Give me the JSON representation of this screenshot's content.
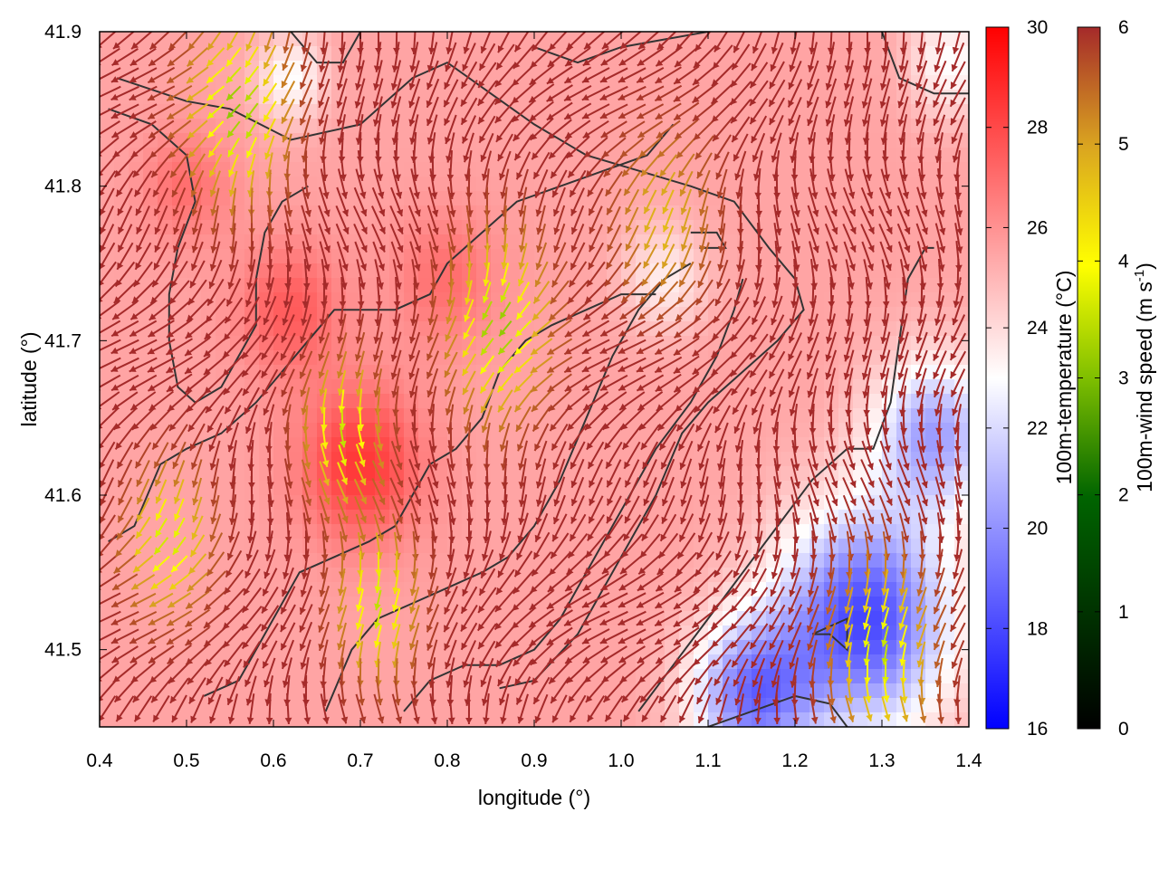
{
  "chart_data": {
    "type": "heatmap",
    "title": "",
    "xlabel": "longitude (°)",
    "ylabel": "latitude (°)",
    "xlim": [
      0.4,
      1.4
    ],
    "ylim": [
      41.45,
      41.9
    ],
    "x_ticks": [
      "0.4",
      "0.5",
      "0.6",
      "0.7",
      "0.8",
      "0.9",
      "1.0",
      "1.1",
      "1.2",
      "1.3",
      "1.4"
    ],
    "y_ticks": [
      "41.5",
      "41.6",
      "41.7",
      "41.8",
      "41.9"
    ],
    "grid": false,
    "temperature_colorbar": {
      "label": "100m-temperature (°C)",
      "range": [
        16,
        30
      ],
      "ticks": [
        "16",
        "18",
        "20",
        "22",
        "24",
        "26",
        "28",
        "30"
      ],
      "colors": [
        "#0000ff",
        "#ffffff",
        "#ff0000"
      ]
    },
    "wind_colorbar": {
      "label": "100m-wind speed (m s",
      "label_sup": "-1",
      "label_end": ")",
      "range": [
        0,
        6
      ],
      "ticks": [
        "0",
        "1",
        "2",
        "3",
        "4",
        "5",
        "6"
      ],
      "colors": [
        "#000000",
        "#006400",
        "#7fbf00",
        "#ffff00",
        "#daa520",
        "#a52a2a"
      ]
    },
    "temperature_field": {
      "background": 25.5,
      "features": [
        {
          "lon": 0.7,
          "lat": 41.62,
          "value": 28.5,
          "spread": 0.07
        },
        {
          "lon": 0.62,
          "lat": 41.72,
          "value": 27.5,
          "spread": 0.06
        },
        {
          "lon": 0.5,
          "lat": 41.8,
          "value": 27.0,
          "spread": 0.05
        },
        {
          "lon": 0.8,
          "lat": 41.74,
          "value": 27.0,
          "spread": 0.06
        },
        {
          "lon": 0.62,
          "lat": 41.87,
          "value": 23.0,
          "spread": 0.04
        },
        {
          "lon": 1.05,
          "lat": 41.74,
          "value": 23.5,
          "spread": 0.05
        },
        {
          "lon": 1.28,
          "lat": 41.52,
          "value": 18.0,
          "spread": 0.1
        },
        {
          "lon": 1.36,
          "lat": 41.64,
          "value": 20.5,
          "spread": 0.07
        },
        {
          "lon": 1.15,
          "lat": 41.47,
          "value": 19.5,
          "spread": 0.07
        },
        {
          "lon": 1.38,
          "lat": 41.88,
          "value": 23.0,
          "spread": 0.05
        }
      ]
    },
    "wind_field": {
      "background_speed": 6,
      "background_direction_deg": 250,
      "calm_zones": [
        {
          "lon": 0.68,
          "lat": 41.64,
          "speed": 3.0,
          "spread": 0.04
        },
        {
          "lon": 0.56,
          "lat": 41.85,
          "speed": 2.5,
          "spread": 0.05
        },
        {
          "lon": 0.86,
          "lat": 41.71,
          "speed": 2.5,
          "spread": 0.05
        },
        {
          "lon": 0.48,
          "lat": 41.57,
          "speed": 3.0,
          "spread": 0.04
        },
        {
          "lon": 1.3,
          "lat": 41.5,
          "speed": 3.0,
          "spread": 0.05
        },
        {
          "lon": 0.72,
          "lat": 41.53,
          "speed": 3.0,
          "spread": 0.04
        },
        {
          "lon": 1.05,
          "lat": 41.78,
          "speed": 4.5,
          "spread": 0.05
        }
      ]
    },
    "terrain_contours": [
      [
        [
          0.42,
          41.87
        ],
        [
          0.5,
          41.855
        ],
        [
          0.55,
          41.85
        ],
        [
          0.62,
          41.83
        ],
        [
          0.7,
          41.84
        ],
        [
          0.76,
          41.87
        ],
        [
          0.8,
          41.88
        ],
        [
          0.85,
          41.86
        ],
        [
          0.9,
          41.84
        ],
        [
          0.96,
          41.82
        ],
        [
          1.02,
          41.81
        ],
        [
          1.08,
          41.8
        ],
        [
          1.13,
          41.79
        ],
        [
          1.17,
          41.76
        ],
        [
          1.2,
          41.74
        ],
        [
          1.21,
          41.72
        ],
        [
          1.18,
          41.7
        ],
        [
          1.14,
          41.68
        ],
        [
          1.1,
          41.66
        ],
        [
          1.07,
          41.64
        ],
        [
          1.04,
          41.6
        ],
        [
          1.01,
          41.57
        ],
        [
          0.98,
          41.54
        ],
        [
          0.95,
          41.51
        ],
        [
          0.9,
          41.48
        ],
        [
          0.86,
          41.475
        ]
      ],
      [
        [
          0.41,
          41.85
        ],
        [
          0.46,
          41.84
        ],
        [
          0.5,
          41.82
        ],
        [
          0.51,
          41.79
        ],
        [
          0.49,
          41.76
        ],
        [
          0.48,
          41.73
        ],
        [
          0.48,
          41.7
        ],
        [
          0.49,
          41.67
        ],
        [
          0.51,
          41.66
        ],
        [
          0.54,
          41.67
        ],
        [
          0.56,
          41.69
        ],
        [
          0.58,
          41.71
        ],
        [
          0.58,
          41.74
        ],
        [
          0.59,
          41.77
        ],
        [
          0.61,
          41.79
        ],
        [
          0.64,
          41.8
        ]
      ],
      [
        [
          0.41,
          41.57
        ],
        [
          0.44,
          41.58
        ],
        [
          0.47,
          41.62
        ],
        [
          0.5,
          41.63
        ],
        [
          0.54,
          41.64
        ],
        [
          0.58,
          41.66
        ],
        [
          0.61,
          41.68
        ],
        [
          0.64,
          41.7
        ],
        [
          0.67,
          41.72
        ],
        [
          0.7,
          41.72
        ],
        [
          0.74,
          41.72
        ],
        [
          0.78,
          41.73
        ],
        [
          0.8,
          41.75
        ],
        [
          0.84,
          41.77
        ],
        [
          0.88,
          41.79
        ],
        [
          0.93,
          41.8
        ],
        [
          0.98,
          41.81
        ],
        [
          1.03,
          41.82
        ],
        [
          1.06,
          41.84
        ]
      ],
      [
        [
          0.52,
          41.47
        ],
        [
          0.56,
          41.48
        ],
        [
          0.58,
          41.5
        ],
        [
          0.6,
          41.52
        ],
        [
          0.63,
          41.55
        ],
        [
          0.67,
          41.56
        ],
        [
          0.71,
          41.57
        ],
        [
          0.74,
          41.58
        ],
        [
          0.76,
          41.6
        ],
        [
          0.78,
          41.62
        ],
        [
          0.81,
          41.63
        ],
        [
          0.84,
          41.65
        ],
        [
          0.86,
          41.68
        ],
        [
          0.89,
          41.7
        ],
        [
          0.92,
          41.71
        ],
        [
          0.96,
          41.72
        ],
        [
          1.0,
          41.73
        ],
        [
          1.04,
          41.73
        ]
      ],
      [
        [
          0.66,
          41.46
        ],
        [
          0.69,
          41.5
        ],
        [
          0.72,
          41.52
        ],
        [
          0.76,
          41.53
        ],
        [
          0.8,
          41.54
        ],
        [
          0.84,
          41.55
        ],
        [
          0.87,
          41.56
        ],
        [
          0.9,
          41.58
        ],
        [
          0.93,
          41.61
        ],
        [
          0.96,
          41.65
        ],
        [
          0.99,
          41.69
        ],
        [
          1.02,
          41.72
        ],
        [
          1.05,
          41.74
        ],
        [
          1.08,
          41.75
        ]
      ],
      [
        [
          0.75,
          41.46
        ],
        [
          0.78,
          41.48
        ],
        [
          0.82,
          41.49
        ],
        [
          0.86,
          41.49
        ],
        [
          0.9,
          41.5
        ],
        [
          0.93,
          41.52
        ],
        [
          0.96,
          41.55
        ],
        [
          1.0,
          41.59
        ],
        [
          1.04,
          41.63
        ],
        [
          1.08,
          41.66
        ],
        [
          1.11,
          41.69
        ],
        [
          1.13,
          41.72
        ],
        [
          1.14,
          41.74
        ]
      ],
      [
        [
          1.02,
          41.46
        ],
        [
          1.06,
          41.49
        ],
        [
          1.1,
          41.52
        ],
        [
          1.14,
          41.55
        ],
        [
          1.18,
          41.58
        ],
        [
          1.22,
          41.61
        ],
        [
          1.26,
          41.63
        ],
        [
          1.29,
          41.63
        ],
        [
          1.31,
          41.66
        ],
        [
          1.32,
          41.7
        ],
        [
          1.33,
          41.74
        ],
        [
          1.35,
          41.76
        ],
        [
          1.36,
          41.76
        ]
      ],
      [
        [
          1.1,
          41.45
        ],
        [
          1.15,
          41.46
        ],
        [
          1.2,
          41.47
        ],
        [
          1.24,
          41.465
        ],
        [
          1.26,
          41.45
        ]
      ],
      [
        [
          1.22,
          41.51
        ],
        [
          1.26,
          41.52
        ],
        [
          1.26,
          41.5
        ],
        [
          1.24,
          41.51
        ],
        [
          1.22,
          41.51
        ]
      ],
      [
        [
          0.9,
          41.89
        ],
        [
          0.95,
          41.88
        ],
        [
          1.0,
          41.89
        ],
        [
          1.05,
          41.895
        ],
        [
          1.1,
          41.9
        ]
      ],
      [
        [
          1.3,
          41.9
        ],
        [
          1.32,
          41.87
        ],
        [
          1.36,
          41.86
        ],
        [
          1.4,
          41.86
        ]
      ],
      [
        [
          0.62,
          41.9
        ],
        [
          0.65,
          41.88
        ],
        [
          0.68,
          41.88
        ],
        [
          0.7,
          41.9
        ]
      ],
      [
        [
          1.08,
          41.77
        ],
        [
          1.11,
          41.77
        ],
        [
          1.12,
          41.76
        ],
        [
          1.09,
          41.76
        ]
      ]
    ]
  }
}
